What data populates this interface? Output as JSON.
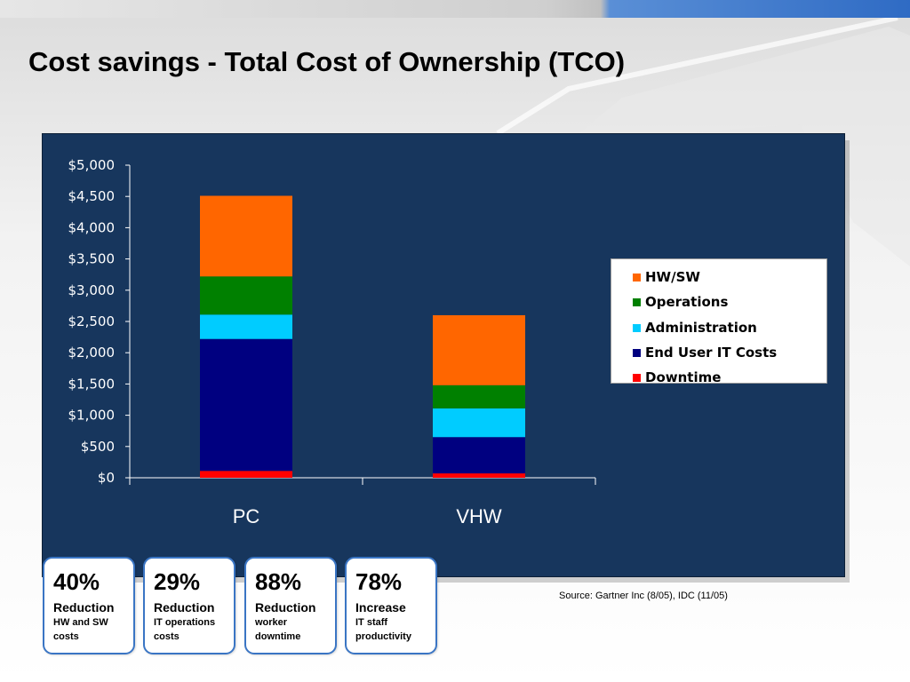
{
  "slide": {
    "title": "Cost savings - Total Cost of Ownership (TCO)",
    "source": "Source: Gartner Inc (8/05), IDC (11/05)"
  },
  "chart_data": {
    "type": "bar",
    "stacked": true,
    "categories": [
      "PC",
      "VHW"
    ],
    "series": [
      {
        "name": "Downtime",
        "color": "#ff0000",
        "values": [
          110,
          70
        ]
      },
      {
        "name": "End User IT Costs",
        "color": "#000080",
        "values": [
          2110,
          580
        ]
      },
      {
        "name": "Administration",
        "color": "#00ccff",
        "values": [
          390,
          460
        ]
      },
      {
        "name": "Operations",
        "color": "#008000",
        "values": [
          610,
          370
        ]
      },
      {
        "name": "HW/SW",
        "color": "#ff6600",
        "values": [
          1290,
          1120
        ]
      }
    ],
    "legend_order": [
      "HW/SW",
      "Operations",
      "Administration",
      "End User IT Costs",
      "Downtime"
    ],
    "yticks": [
      "$0",
      "$500",
      "$1,000",
      "$1,500",
      "$2,000",
      "$2,500",
      "$3,000",
      "$3,500",
      "$4,000",
      "$4,500",
      "$5,000"
    ],
    "ylim": [
      0,
      5000
    ],
    "grid": false,
    "legend_position": "right"
  },
  "stats": [
    {
      "value": "40%",
      "label": "Reduction",
      "desc": "HW and SW\ncosts"
    },
    {
      "value": "29%",
      "label": "Reduction",
      "desc": "IT operations\ncosts"
    },
    {
      "value": "88%",
      "label": "Reduction",
      "desc": "worker\ndowntime"
    },
    {
      "value": "78%",
      "label": "Increase",
      "desc": "IT staff\nproductivity"
    }
  ]
}
